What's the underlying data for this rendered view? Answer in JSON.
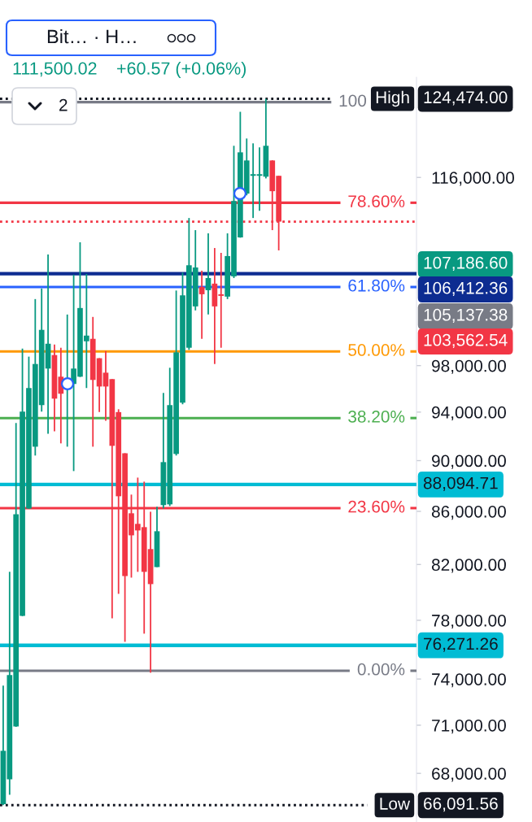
{
  "chart_data": {
    "type": "candlestick",
    "title": "Bit… · H…",
    "categories": [
      null,
      null,
      null,
      null,
      null,
      null,
      null,
      null,
      null,
      null,
      null,
      null,
      null,
      null,
      null,
      null,
      null,
      null,
      null,
      null,
      null,
      null,
      null,
      null,
      null,
      null,
      null,
      null,
      null,
      null,
      null,
      null,
      null,
      null,
      null,
      null,
      null,
      null,
      null,
      null,
      null,
      null,
      null,
      null,
      null,
      null,
      null,
      null,
      null,
      null,
      null,
      null,
      null,
      null,
      null,
      null,
      null,
      null,
      null,
      null,
      null,
      null,
      null,
      null,
      null
    ],
    "ohlc": [
      [
        66150,
        73560,
        66091.56,
        69390
      ],
      [
        67640,
        81460,
        66710,
        74260
      ],
      [
        70920,
        93080,
        70900,
        85780
      ],
      [
        78310,
        99510,
        78300,
        94040
      ],
      [
        86220,
        98790,
        86200,
        96050
      ],
      [
        91130,
        104020,
        90410,
        98140
      ],
      [
        94590,
        105010,
        94040,
        101190
      ],
      [
        97740,
        108260,
        92200,
        99940
      ],
      [
        98930,
        99870,
        92400,
        95140
      ],
      [
        97030,
        99580,
        91400,
        95560
      ],
      [
        95980,
        102590,
        91130,
        96890
      ],
      [
        96400,
        106310,
        89160,
        97740
      ],
      [
        97030,
        109450,
        97000,
        103190
      ],
      [
        100160,
        106390,
        96050,
        100670
      ],
      [
        100380,
        102370,
        91130,
        96750
      ],
      [
        98650,
        98650,
        94000,
        96180
      ],
      [
        97380,
        99290,
        93280,
        96180
      ],
      [
        96820,
        96820,
        78140,
        91200
      ],
      [
        94000,
        94240,
        79870,
        87170
      ],
      [
        90600,
        90600,
        76510,
        81160
      ],
      [
        85850,
        87300,
        81040,
        84170
      ],
      [
        85040,
        88640,
        81460,
        84540
      ],
      [
        84790,
        88320,
        77070,
        81460
      ],
      [
        83140,
        85970,
        74420,
        80570
      ],
      [
        81810,
        86350,
        81800,
        84480
      ],
      [
        86480,
        95630,
        86220,
        89880
      ],
      [
        86540,
        97810,
        86410,
        94590
      ],
      [
        90540,
        104820,
        90410,
        99170
      ],
      [
        94790,
        106520,
        94660,
        104370
      ],
      [
        99580,
        111860,
        99390,
        107220
      ],
      [
        103340,
        110650,
        102970,
        107010
      ],
      [
        105160,
        106700,
        100380,
        104470
      ],
      [
        104850,
        110330,
        102590,
        106000
      ],
      [
        105470,
        108890,
        98140,
        103340
      ],
      [
        104470,
        108420,
        99580,
        104320
      ],
      [
        104250,
        110330,
        104020,
        108110
      ],
      [
        106160,
        119340,
        106000,
        113580
      ],
      [
        109930,
        123030,
        109900,
        118640
      ],
      [
        114330,
        120120,
        114160,
        117780
      ],
      [
        116170,
        119600,
        111860,
        116340
      ],
      [
        116170,
        119160,
        112590,
        116340
      ],
      [
        116080,
        124474,
        115900,
        119340
      ],
      [
        117780,
        117800,
        110650,
        114580
      ],
      [
        116170,
        116170,
        108660,
        111500.02
      ],
      null,
      null,
      null,
      null,
      null,
      null,
      null,
      null,
      null,
      null,
      null,
      null,
      null,
      null,
      null,
      null,
      null,
      null,
      null,
      null,
      null
    ],
    "colors": [
      "#089981",
      "#089981",
      "#089981",
      "#089981",
      "#089981",
      "#089981",
      "#089981",
      "#089981",
      "#f23645",
      "#f23645",
      "#089981",
      "#089981",
      "#089981",
      "#089981",
      "#f23645",
      "#f23645",
      "#f23645",
      "#f23645",
      "#f23645",
      "#f23645",
      "#f23645",
      "#f23645",
      "#f23645",
      "#f23645",
      "#089981",
      "#089981",
      "#089981",
      "#089981",
      "#089981",
      "#089981",
      "#089981",
      "#f23645",
      "#089981",
      "#f23645",
      "#f23645",
      "#089981",
      "#089981",
      "#089981",
      "#089981",
      "#089981",
      "#089981",
      "#089981",
      "#f23645",
      "#f23645",
      null,
      null,
      null,
      null,
      null,
      null,
      null,
      null,
      null,
      null,
      null,
      null,
      null,
      null,
      null,
      null,
      null,
      null,
      null,
      null,
      null
    ],
    "log": true,
    "ylim": [
      65100,
      126900
    ],
    "yticks": [
      {
        "value": 116000,
        "label": "116,000.00"
      },
      {
        "value": 98000,
        "label": "98,000.00"
      },
      {
        "value": 94000,
        "label": "94,000.00"
      },
      {
        "value": 90000,
        "label": "90,000.00"
      },
      {
        "value": 86000,
        "label": "86,000.00"
      },
      {
        "value": 82000,
        "label": "82,000.00"
      },
      {
        "value": 78000,
        "label": "78,000.00"
      },
      {
        "value": 74000,
        "label": "74,000.00"
      },
      {
        "value": 71000,
        "label": "71,000.00"
      },
      {
        "value": 68000,
        "label": "68,000.00"
      }
    ],
    "ref_lines": [
      {
        "axis": "y",
        "value": 124100,
        "color": "#787b86"
      },
      {
        "axis": "y",
        "value": 113400,
        "color": "#f23645"
      },
      {
        "axis": "y",
        "value": 105150,
        "color": "#2962ff"
      },
      {
        "axis": "y",
        "value": 99250,
        "color": "#ff9800"
      },
      {
        "axis": "y",
        "value": 93500,
        "color": "#4caf50"
      },
      {
        "axis": "y",
        "value": 86250,
        "color": "#f23645"
      },
      {
        "axis": "y",
        "value": 74550,
        "color": "#787b86"
      },
      {
        "axis": "y",
        "value": 124474,
        "label": "High",
        "color": "#131722",
        "line_style": "dotted"
      },
      {
        "axis": "y",
        "value": 111500.02,
        "color": "#f23645",
        "line_style": "dotted"
      },
      {
        "axis": "y",
        "value": 106412.36,
        "label": "106,412.36",
        "color": "#0d2c91"
      },
      {
        "axis": "y",
        "value": 88094.71,
        "label": "88,094.71",
        "color": "#00bcd4"
      },
      {
        "axis": "y",
        "value": 76271.26,
        "label": "76,271.26",
        "color": "#00bcd4"
      },
      {
        "axis": "y",
        "value": 66091.56,
        "label": "Low",
        "color": "#131722",
        "line_style": "dotted"
      }
    ],
    "annotations": [
      "111,500.02",
      "+60.57 (+0.06%)",
      "2",
      "100",
      "78.60%",
      "61.80%",
      "50.00%",
      "38.20%",
      "23.60%",
      "0.00%",
      "124,474.00",
      "66,091.56",
      "107,186.60",
      "105,137.38",
      "103,562.54"
    ]
  }
}
